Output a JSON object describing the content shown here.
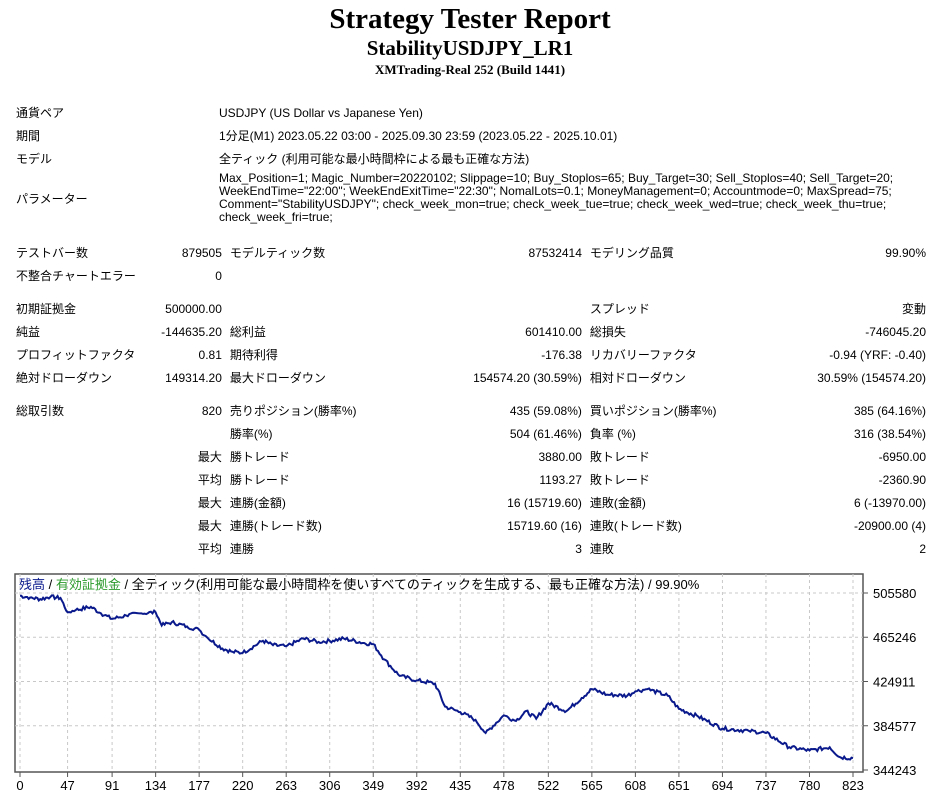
{
  "header": {
    "title": "Strategy Tester Report",
    "ea": "StabilityUSDJPY_LR1",
    "server": "XMTrading-Real 252 (Build 1441)"
  },
  "info": [
    {
      "label": "通貨ペア",
      "value": "USDJPY (US Dollar vs Japanese Yen)"
    },
    {
      "label": "期間",
      "value": "1分足(M1) 2023.05.22 03:00 - 2025.09.30 23:59 (2023.05.22 - 2025.10.01)"
    },
    {
      "label": "モデル",
      "value": "全ティック (利用可能な最小時間枠による最も正確な方法)"
    },
    {
      "label": "パラメーター",
      "value": "Max_Position=1; Magic_Number=20220102; Slippage=10; Buy_Stoplos=65; Buy_Target=30; Sell_Stoplos=40; Sell_Target=20; WeekEndTime=\"22:00\"; WeekEndExitTime=\"22:30\"; NomalLots=0.1; MoneyManagement=0; Accountmode=0; MaxSpread=75; Comment=\"StabilityUSDJPY\"; check_week_mon=true; check_week_tue=true; check_week_wed=true; check_week_thu=true; check_week_fri=true;"
    }
  ],
  "stats": {
    "bars_label": "テストバー数",
    "bars": "879505",
    "ticks_label": "モデルティック数",
    "ticks": "87532414",
    "quality_label": "モデリング品質",
    "quality": "99.90%",
    "errors_label": "不整合チャートエラー",
    "errors": "0",
    "deposit_label": "初期証拠金",
    "deposit": "500000.00",
    "spread_label": "スプレッド",
    "spread": "変動",
    "net_label": "純益",
    "net": "-144635.20",
    "gross_profit_label": "総利益",
    "gross_profit": "601410.00",
    "gross_loss_label": "総損失",
    "gross_loss": "-746045.20",
    "pf_label": "プロフィットファクタ",
    "pf": "0.81",
    "expected_label": "期待利得",
    "expected": "-176.38",
    "recovery_label": "リカバリーファクタ",
    "recovery": "-0.94 (YRF: -0.40)",
    "abs_dd_label": "絶対ドローダウン",
    "abs_dd": "149314.20",
    "max_dd_label": "最大ドローダウン",
    "max_dd": "154574.20 (30.59%)",
    "rel_dd_label": "相対ドローダウン",
    "rel_dd": "30.59% (154574.20)",
    "trades_label": "総取引数",
    "trades": "820",
    "short_label": "売りポジション(勝率%)",
    "short": "435 (59.08%)",
    "long_label": "買いポジション(勝率%)",
    "long": "385 (64.16%)",
    "win_label": "勝率(%)",
    "win": "504 (61.46%)",
    "loss_label": "負率 (%)",
    "loss": "316 (38.54%)",
    "max_label": "最大",
    "avg_label": "平均",
    "lw_label": "勝トレード",
    "lw": "3880.00",
    "ll_label": "敗トレード",
    "ll": "-6950.00",
    "aw_label": "勝トレード",
    "aw": "1193.27",
    "al_label": "敗トレード",
    "al": "-2360.90",
    "cw_label": "連勝(金額)",
    "cw": "16 (15719.60)",
    "cl_label": "連敗(金額)",
    "cl": "6 (-13970.00)",
    "cwt_label": "連勝(トレード数)",
    "cwt": "15719.60 (16)",
    "clt_label": "連敗(トレード数)",
    "clt": "-20900.00 (4)",
    "acw_label": "連勝",
    "acw": "3",
    "acl_label": "連敗",
    "acl": "2"
  },
  "chart_data": {
    "type": "line",
    "legend": {
      "balance": "残高",
      "sep": " / ",
      "equity": "有効証拠金",
      "desc": " / 全ティック(利用可能な最小時間枠を使いすべてのティックを生成する、最も正確な方法) / 99.90%"
    },
    "colors": {
      "line": "#0a1a8c",
      "balance": "#0a1a8c",
      "equity": "#2c9a2c",
      "grid": "#c8c8c8"
    },
    "x_ticks": [
      "0",
      "47",
      "91",
      "134",
      "177",
      "220",
      "263",
      "306",
      "349",
      "392",
      "435",
      "478",
      "522",
      "565",
      "608",
      "651",
      "694",
      "737",
      "780",
      "823"
    ],
    "y_ticks": [
      "505580",
      "465246",
      "424911",
      "384577",
      "344243"
    ],
    "xlim": [
      0,
      830
    ],
    "ylim": [
      344243,
      510000
    ],
    "x": [
      0,
      10,
      20,
      30,
      40,
      47,
      55,
      70,
      80,
      91,
      105,
      120,
      134,
      140,
      150,
      165,
      177,
      185,
      200,
      210,
      220,
      240,
      250,
      263,
      280,
      295,
      306,
      320,
      340,
      349,
      360,
      375,
      392,
      410,
      420,
      435,
      450,
      460,
      478,
      490,
      500,
      510,
      522,
      540,
      555,
      565,
      580,
      600,
      608,
      620,
      640,
      651,
      670,
      694,
      720,
      737,
      760,
      780,
      800,
      810,
      823
    ],
    "y": [
      503000,
      501500,
      500000,
      502000,
      501000,
      488000,
      490000,
      493000,
      487000,
      482000,
      485000,
      487000,
      488000,
      476000,
      479000,
      475000,
      472000,
      465000,
      455000,
      452000,
      451000,
      462000,
      458000,
      457000,
      464000,
      461000,
      462000,
      464000,
      460000,
      459000,
      445000,
      430000,
      426000,
      423000,
      402000,
      397000,
      390000,
      378000,
      394000,
      389000,
      398000,
      391000,
      405000,
      398000,
      410000,
      418000,
      413000,
      412000,
      416000,
      418000,
      412000,
      400000,
      393000,
      382000,
      380000,
      378000,
      365000,
      362000,
      365000,
      356000,
      355000
    ]
  }
}
